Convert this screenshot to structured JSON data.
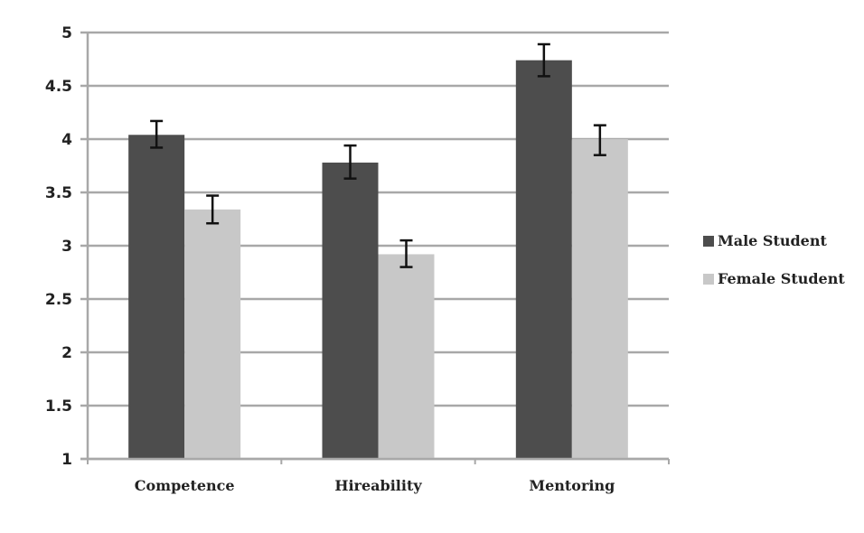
{
  "chart_data": {
    "type": "bar",
    "title": "",
    "xlabel": "",
    "ylabel": "",
    "categories": [
      "Competence",
      "Hireability",
      "Mentoring"
    ],
    "series": [
      {
        "name": "Male Student",
        "color": "#4d4d4d",
        "values": [
          4.04,
          3.78,
          4.74
        ],
        "error_low": [
          3.92,
          3.63,
          4.59
        ],
        "error_high": [
          4.17,
          3.94,
          4.89
        ]
      },
      {
        "name": "Female Student",
        "color": "#c8c8c8",
        "values": [
          3.34,
          2.92,
          4.0
        ],
        "error_low": [
          3.21,
          2.8,
          3.85
        ],
        "error_high": [
          3.47,
          3.05,
          4.13
        ]
      }
    ],
    "ylim": [
      1,
      5
    ],
    "yticks": [
      "1",
      "1.5",
      "2",
      "2.5",
      "3",
      "3.5",
      "4",
      "4.5",
      "5"
    ],
    "grid": true,
    "legend_position": "right"
  },
  "legend": {
    "items": [
      {
        "label": "Male Student",
        "color": "#4d4d4d"
      },
      {
        "label": "Female Student",
        "color": "#c8c8c8"
      }
    ]
  }
}
